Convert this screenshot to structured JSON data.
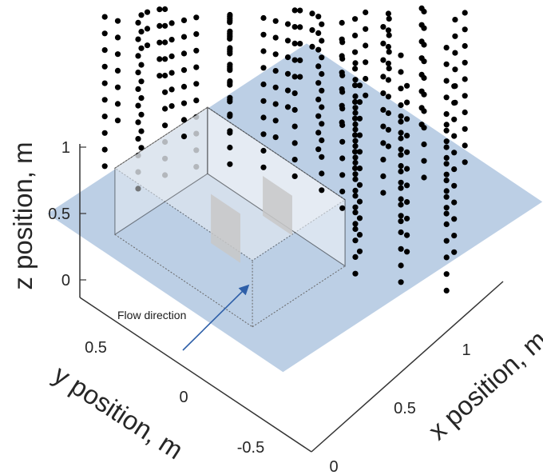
{
  "chart_data": {
    "type": "scatter3d",
    "annotation": "Flow direction",
    "axes": {
      "x": {
        "label": "x position, m",
        "ticks": [
          0,
          0.5,
          1
        ],
        "tick_labels": [
          "0",
          "0.5",
          "1"
        ]
      },
      "y": {
        "label": "y position, m",
        "ticks": [
          0.5,
          0,
          -0.5
        ],
        "tick_labels": [
          "0.5",
          "0",
          "-0.5"
        ]
      },
      "z": {
        "label": "z position, m",
        "ticks": [
          0,
          0.5,
          1
        ],
        "tick_labels": [
          "0",
          "0.5",
          "1"
        ]
      }
    },
    "ground_plane": {
      "color": "#b8cce4",
      "x_range": [
        -0.1,
        1.3
      ],
      "y_range": [
        -0.6,
        0.6
      ],
      "z": 0
    },
    "cube": {
      "x_range": [
        0,
        0.5
      ],
      "y_range": [
        -0.35,
        0.35
      ],
      "z_range": [
        0,
        0.5
      ]
    },
    "point_grid": {
      "description": "measurement points on a cylindrical arc around the model",
      "radii": [
        0.55,
        0.75,
        0.95,
        1.15,
        1.35
      ],
      "angles_deg": [
        -60,
        -45,
        -30,
        -15,
        0,
        15,
        30,
        45,
        60,
        75,
        90
      ],
      "z_levels": [
        0,
        0.125,
        0.25,
        0.375,
        0.5,
        0.625,
        0.75,
        0.875,
        1.0,
        1.125,
        1.25
      ]
    },
    "colors": {
      "points": "#000000",
      "plane": "#b8cce4",
      "cube_face": "#e8edf3",
      "arrow": "#2e5fa8",
      "baffle": "#c8c8c8"
    }
  }
}
